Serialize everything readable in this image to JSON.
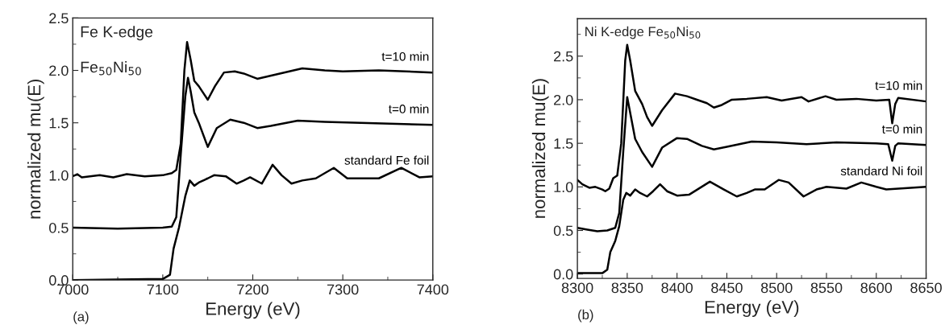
{
  "chart_data": [
    {
      "type": "line",
      "xlabel": "Energy (eV)",
      "ylabel": "normalized mu(E)",
      "xlim": [
        7000,
        7400
      ],
      "ylim": [
        0,
        2.5
      ],
      "xticks": [
        7000,
        7100,
        7200,
        7300,
        7400
      ],
      "yticks": [
        {
          "value": 0,
          "label": "0.0"
        },
        0.5,
        {
          "value": 1,
          "label": "1.0"
        },
        1.5,
        {
          "value": 2,
          "label": "2.0"
        },
        2.5
      ],
      "grid": false,
      "legend": false,
      "marker": "none",
      "line_style": "solid",
      "annotations": [
        "Fe K-edge",
        "Fe$_{50}$Ni$_{50}$",
        "(a)"
      ],
      "series": [
        {
          "name": "t=10 min",
          "color": "#000000",
          "x": [
            7000,
            7005,
            7010,
            7030,
            7045,
            7060,
            7080,
            7100,
            7110,
            7115,
            7120,
            7124,
            7127,
            7131,
            7135,
            7140,
            7150,
            7158,
            7168,
            7180,
            7190,
            7205,
            7230,
            7255,
            7280,
            7300,
            7340,
            7400
          ],
          "values": [
            0.99,
            1.01,
            0.98,
            1.0,
            0.98,
            1.01,
            0.99,
            1.0,
            1.02,
            1.05,
            1.3,
            2.0,
            2.27,
            2.1,
            1.9,
            1.85,
            1.72,
            1.85,
            1.98,
            1.99,
            1.97,
            1.92,
            1.97,
            2.02,
            2.0,
            1.99,
            2.0,
            1.98
          ]
        },
        {
          "name": "t=0 min",
          "color": "#000000",
          "x": [
            7000,
            7050,
            7100,
            7110,
            7115,
            7120,
            7125,
            7128,
            7131,
            7135,
            7140,
            7150,
            7160,
            7175,
            7190,
            7205,
            7220,
            7250,
            7280,
            7320,
            7400
          ],
          "values": [
            0.5,
            0.49,
            0.5,
            0.51,
            0.6,
            1.2,
            1.75,
            1.93,
            1.8,
            1.6,
            1.5,
            1.27,
            1.45,
            1.53,
            1.5,
            1.45,
            1.47,
            1.52,
            1.51,
            1.5,
            1.48
          ]
        },
        {
          "name": "standard Fe foil",
          "color": "#000000",
          "x": [
            7000,
            7100,
            7108,
            7112,
            7118,
            7125,
            7130,
            7135,
            7140,
            7150,
            7157,
            7170,
            7182,
            7190,
            7197,
            7210,
            7222,
            7232,
            7243,
            7255,
            7270,
            7290,
            7305,
            7340,
            7365,
            7385,
            7400
          ],
          "values": [
            0.0,
            0.01,
            0.05,
            0.3,
            0.5,
            0.8,
            0.95,
            0.9,
            0.93,
            0.97,
            1.0,
            0.99,
            0.92,
            0.95,
            0.98,
            0.92,
            1.1,
            1.0,
            0.92,
            0.95,
            0.97,
            1.07,
            0.97,
            0.97,
            1.07,
            0.98,
            0.99
          ]
        }
      ]
    },
    {
      "type": "line",
      "xlabel": "Energy (eV)",
      "ylabel": "normalized mu(E)",
      "xlim": [
        8300,
        8650
      ],
      "ylim": [
        -0.05,
        2.93
      ],
      "xticks": [
        8300,
        8350,
        8400,
        8450,
        8500,
        8550,
        8600,
        8650
      ],
      "yticks": [
        {
          "value": 0,
          "label": "0.0"
        },
        0.5,
        {
          "value": 1,
          "label": "1.0"
        },
        1.5,
        {
          "value": 2,
          "label": "2.0"
        },
        2.5
      ],
      "grid": false,
      "legend": false,
      "marker": "none",
      "line_style": "solid",
      "annotations": [
        "Ni K-edge Fe$_{50}$Ni$_{50}$",
        "(b)"
      ],
      "series": [
        {
          "name": "t=10 min",
          "color": "#000000",
          "x": [
            8300,
            8305,
            8312,
            8318,
            8325,
            8328,
            8332,
            8336,
            8340,
            8344,
            8348,
            8350,
            8353,
            8358,
            8365,
            8370,
            8375,
            8385,
            8398,
            8410,
            8420,
            8430,
            8437,
            8445,
            8455,
            8470,
            8490,
            8505,
            8525,
            8532,
            8549,
            8560,
            8580,
            8600,
            8613,
            8616,
            8619,
            8622,
            8650
          ],
          "values": [
            1.08,
            1.03,
            0.99,
            1.0,
            0.97,
            0.95,
            0.98,
            1.1,
            1.13,
            1.5,
            2.45,
            2.63,
            2.45,
            2.1,
            1.95,
            1.8,
            1.7,
            1.88,
            2.07,
            2.04,
            2.0,
            1.96,
            1.91,
            1.94,
            2.0,
            2.01,
            2.03,
            1.99,
            2.03,
            1.98,
            2.04,
            2.0,
            2.01,
            1.99,
            2.0,
            1.73,
            1.95,
            2.02,
            1.98
          ]
        },
        {
          "name": "t=0 min",
          "color": "#000000",
          "x": [
            8300,
            8310,
            8320,
            8330,
            8338,
            8342,
            8346,
            8350,
            8353,
            8358,
            8365,
            8375,
            8385,
            8400,
            8410,
            8425,
            8437,
            8450,
            8475,
            8500,
            8530,
            8560,
            8600,
            8612,
            8616,
            8619,
            8622,
            8650
          ],
          "values": [
            0.53,
            0.51,
            0.49,
            0.5,
            0.53,
            0.7,
            1.4,
            2.03,
            1.85,
            1.55,
            1.4,
            1.23,
            1.45,
            1.56,
            1.55,
            1.47,
            1.43,
            1.46,
            1.52,
            1.51,
            1.49,
            1.51,
            1.5,
            1.49,
            1.3,
            1.47,
            1.5,
            1.48
          ]
        },
        {
          "name": "standard Ni foil",
          "color": "#000000",
          "x": [
            8300,
            8325,
            8330,
            8333,
            8338,
            8342,
            8346,
            8349,
            8353,
            8358,
            8363,
            8370,
            8376,
            8383,
            8390,
            8400,
            8412,
            8433,
            8447,
            8460,
            8470,
            8478,
            8488,
            8502,
            8512,
            8527,
            8540,
            8550,
            8570,
            8585,
            8600,
            8610,
            8650
          ],
          "values": [
            0.01,
            0.01,
            0.05,
            0.25,
            0.38,
            0.55,
            0.85,
            0.93,
            0.9,
            0.97,
            0.93,
            0.89,
            0.95,
            1.03,
            0.95,
            0.9,
            0.91,
            1.06,
            0.97,
            0.89,
            0.93,
            0.97,
            0.97,
            1.08,
            1.05,
            0.89,
            0.97,
            1.0,
            0.98,
            1.05,
            1.0,
            0.97,
            1.0
          ]
        }
      ]
    }
  ]
}
